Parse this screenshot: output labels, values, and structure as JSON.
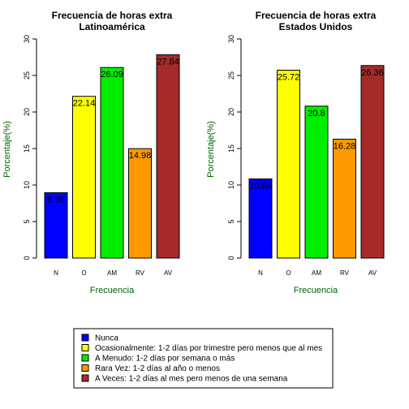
{
  "chart_data": [
    {
      "type": "bar",
      "title": "Frecuencia de horas extra",
      "subtitle": "Latinoamérica",
      "xlabel": "Frecuencia",
      "ylabel": "Porcentaje(%)",
      "categories": [
        "N",
        "O",
        "AM",
        "RV",
        "AV"
      ],
      "values": [
        8.95,
        22.14,
        26.09,
        14.98,
        27.84
      ],
      "value_labels": [
        "8.95",
        "22.14",
        "26.09",
        "14.98",
        "27.84"
      ],
      "colors": [
        "#0000ff",
        "#ffff00",
        "#00ee00",
        "#ff9900",
        "#a52a2a"
      ],
      "ylim": [
        0,
        30
      ],
      "yticks": [
        0,
        5,
        10,
        15,
        20,
        25,
        30
      ],
      "grid": false
    },
    {
      "type": "bar",
      "title": "Frecuencia de horas extra",
      "subtitle": "Estados Unidos",
      "xlabel": "Frecuencia",
      "ylabel": "Porcentaje(%)",
      "categories": [
        "N",
        "O",
        "AM",
        "RV",
        "AV"
      ],
      "values": [
        10.84,
        25.72,
        20.8,
        16.28,
        26.36
      ],
      "value_labels": [
        "10.84",
        "25.72",
        "20.8",
        "16.28",
        "26.36"
      ],
      "colors": [
        "#0000ff",
        "#ffff00",
        "#00ee00",
        "#ff9900",
        "#a52a2a"
      ],
      "ylim": [
        0,
        30
      ],
      "yticks": [
        0,
        5,
        10,
        15,
        20,
        25,
        30
      ],
      "grid": false
    }
  ],
  "legend": {
    "placement": "bottom-center",
    "items": [
      {
        "label": "Nunca",
        "color": "#0000ff"
      },
      {
        "label": "Ocasionalmente: 1-2 días por trimestre pero menos que al mes",
        "color": "#ffff00"
      },
      {
        "label": "A Menudo: 1-2 días por semana o más",
        "color": "#00ee00"
      },
      {
        "label": "Rara Vez: 1-2 días al año o menos",
        "color": "#ff9900"
      },
      {
        "label": "A Veces: 1-2 días al mes pero menos de una semana",
        "color": "#a52a2a"
      }
    ]
  }
}
